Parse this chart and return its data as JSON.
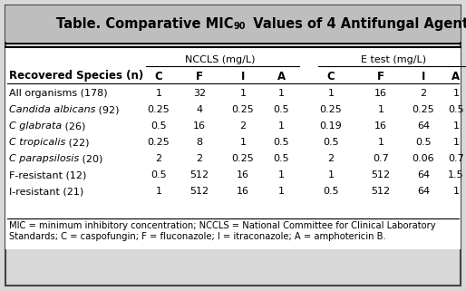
{
  "title_part1": "Table. Comparative MIC",
  "title_sub": "90",
  "title_part2": "  Values of 4 Antifungal Agents",
  "header_group1": "NCCLS (mg/L)",
  "header_group2": "E test (mg/L)",
  "col_headers": [
    "Recovered Species (n)",
    "C",
    "F",
    "I",
    "A",
    "C",
    "F",
    "I",
    "A"
  ],
  "rows": [
    [
      "All organisms (178)",
      "1",
      "32",
      "1",
      "1",
      "1",
      "16",
      "2",
      "1"
    ],
    [
      "Candida albicans (92)",
      "0.25",
      "4",
      "0.25",
      "0.5",
      "0.25",
      "1",
      "0.25",
      "0.5"
    ],
    [
      "C glabrata (26)",
      "0.5",
      "16",
      "2",
      "1",
      "0.19",
      "16",
      "64",
      "1"
    ],
    [
      "C tropicalis (22)",
      "0.25",
      "8",
      "1",
      "0.5",
      "0.5",
      "1",
      "0.5",
      "1"
    ],
    [
      "C parapsilosis (20)",
      "2",
      "2",
      "0.25",
      "0.5",
      "2",
      "0.7",
      "0.06",
      "0.7"
    ],
    [
      "F-resistant (12)",
      "0.5",
      "512",
      "16",
      "1",
      "1",
      "512",
      "64",
      "1.5"
    ],
    [
      "I-resistant (21)",
      "1",
      "512",
      "16",
      "1",
      "0.5",
      "512",
      "64",
      "1"
    ]
  ],
  "italic_species": [
    "Candida albicans",
    "C glabrata",
    "C tropicalis",
    "C parapsilosis"
  ],
  "footnote_line1": "MIC = minimum inhibitory concentration; NCCLS = National Committee for Clinical Laboratory",
  "footnote_line2": "Standards; C = caspofungin; F = fluconazole; I = itraconazole; A = amphotericin B.",
  "title_bg": "#bebebe",
  "outer_bg": "#d8d8d8",
  "table_bg": "#ffffff",
  "outer_border": "#444444",
  "inner_border": "#222222",
  "title_fontsize": 10.5,
  "body_fontsize": 8.0,
  "footnote_fontsize": 7.2,
  "col_header_fontsize": 8.5,
  "fig_width": 5.14,
  "fig_height": 3.21,
  "dpi": 100
}
